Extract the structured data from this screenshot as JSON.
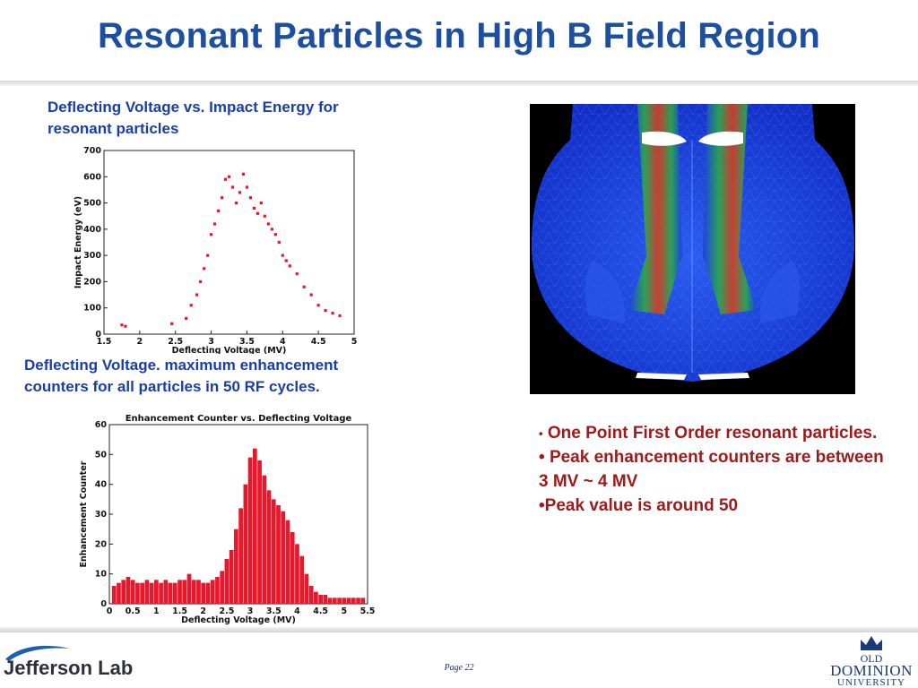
{
  "slide": {
    "title": "Resonant Particles in High B Field Region",
    "caption_top": "Deflecting Voltage vs. Impact Energy for resonant particles",
    "caption_mid": "Deflecting Voltage. maximum enhancement counters for all particles in 50 RF cycles.",
    "bullets": [
      "One Point First Order resonant particles.",
      "Peak enhancement counters are between 3 MV ~ 4 MV",
      "Peak value is around 50"
    ],
    "page_label": "Page 22",
    "logo_left": "Jefferson Lab",
    "logo_right_line1": "OLD",
    "logo_right_line2": "DOMINION",
    "logo_right_line3": "UNIVERSITY",
    "accent_title": "#1c4fa0",
    "accent_bullets": "#a11a1a"
  },
  "chart_data": [
    {
      "type": "scatter",
      "title": "",
      "xlabel": "Deflecting Voltage (MV)",
      "ylabel": "Impact Energy (eV)",
      "xlim": [
        1.5,
        5
      ],
      "ylim": [
        0,
        700
      ],
      "xticks": [
        "1.5",
        "2",
        "2.5",
        "3",
        "3.5",
        "4",
        "4.5",
        "5"
      ],
      "yticks": [
        "0",
        "100",
        "200",
        "300",
        "400",
        "500",
        "600",
        "700"
      ],
      "color": "#e8182c",
      "series": [
        {
          "x": [
            1.75,
            1.8,
            2.45,
            2.65,
            2.72,
            2.8,
            2.85,
            2.9,
            2.95,
            3.0,
            3.05,
            3.1,
            3.15,
            3.2,
            3.25,
            3.3,
            3.35,
            3.4,
            3.45,
            3.5,
            3.55,
            3.6,
            3.65,
            3.7,
            3.75,
            3.8,
            3.85,
            3.9,
            3.95,
            4.0,
            4.05,
            4.1,
            4.2,
            4.3,
            4.4,
            4.5,
            4.6,
            4.7,
            4.8
          ],
          "y": [
            35,
            30,
            40,
            60,
            110,
            150,
            200,
            250,
            300,
            380,
            420,
            470,
            520,
            590,
            600,
            560,
            500,
            540,
            610,
            560,
            520,
            480,
            460,
            500,
            450,
            420,
            400,
            380,
            350,
            300,
            280,
            260,
            230,
            180,
            150,
            110,
            90,
            80,
            70
          ]
        }
      ]
    },
    {
      "type": "bar",
      "title": "Enhancement Counter vs. Deflecting Voltage",
      "xlabel": "Deflecting Voltage (MV)",
      "ylabel": "Enhancement Counter",
      "xlim": [
        0,
        5.5
      ],
      "ylim": [
        0,
        60
      ],
      "xticks": [
        "0",
        "0.5",
        "1",
        "1.5",
        "2",
        "2.5",
        "3",
        "3.5",
        "4",
        "4.5",
        "5",
        "5.5"
      ],
      "yticks": [
        "0",
        "10",
        "20",
        "30",
        "40",
        "50",
        "60"
      ],
      "color": "#e8182c",
      "series": [
        {
          "x": [
            0.1,
            0.2,
            0.3,
            0.4,
            0.5,
            0.6,
            0.7,
            0.8,
            0.9,
            1.0,
            1.1,
            1.2,
            1.3,
            1.4,
            1.5,
            1.6,
            1.7,
            1.8,
            1.9,
            2.0,
            2.1,
            2.2,
            2.3,
            2.4,
            2.5,
            2.6,
            2.7,
            2.8,
            2.9,
            3.0,
            3.1,
            3.2,
            3.3,
            3.4,
            3.5,
            3.6,
            3.7,
            3.8,
            3.9,
            4.0,
            4.1,
            4.2,
            4.3,
            4.4,
            4.5,
            4.6,
            4.7,
            4.8,
            4.9,
            5.0,
            5.1,
            5.2,
            5.3,
            5.4
          ],
          "y": [
            6,
            7,
            8,
            9,
            8,
            7,
            7,
            8,
            7,
            8,
            7,
            8,
            7,
            7,
            8,
            8,
            10,
            8,
            8,
            7,
            7,
            8,
            9,
            11,
            15,
            18,
            25,
            32,
            40,
            49,
            52,
            48,
            43,
            38,
            35,
            33,
            31,
            28,
            24,
            20,
            16,
            10,
            6,
            4,
            3,
            3,
            2,
            2,
            2,
            2,
            2,
            2,
            2,
            2
          ]
        }
      ]
    }
  ]
}
